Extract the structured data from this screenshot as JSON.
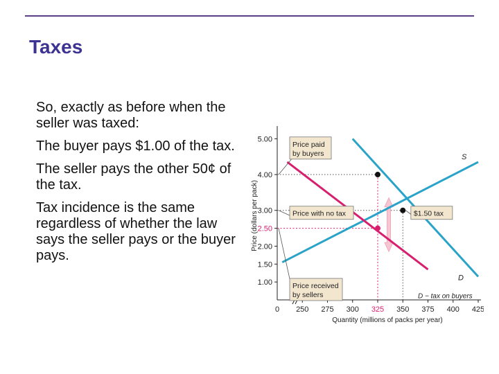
{
  "slide": {
    "title": "Taxes",
    "bullets": [
      "So, exactly as before when the seller was taxed:",
      "The buyer pays $1.00 of the tax.",
      "The seller pays the other 50¢ of the tax.",
      "Tax incidence is the same regardless of whether the law says the seller pays or the buyer pays."
    ]
  },
  "colors": {
    "accent_rule": "#5b3f86",
    "title": "#3d3393",
    "supply": "#2aa3c9",
    "demand": "#d81f6f",
    "demand_minus_tax": "#d81f6f",
    "callout_fill": "#f3e6cf",
    "tax_arrow": "#f6c6d3"
  },
  "chart_data": {
    "type": "line",
    "xlabel": "Quantity (millions of packs per year)",
    "ylabel": "Price (dollars per pack)",
    "x_ticks": [
      "0",
      "250",
      "275",
      "300",
      "325",
      "350",
      "375",
      "400",
      "425"
    ],
    "y_ticks": [
      "1.00",
      "1.50",
      "2.00",
      "2.50",
      "3.00",
      "4.00",
      "5.00"
    ],
    "xlim": [
      225,
      425
    ],
    "ylim": [
      0.5,
      5.2
    ],
    "highlight_x_tick": "325",
    "highlight_y_tick": "2.50",
    "series": [
      {
        "name": "S",
        "points": [
          [
            230,
            1.55
          ],
          [
            425,
            4.35
          ]
        ]
      },
      {
        "name": "D",
        "points": [
          [
            300,
            5.0
          ],
          [
            425,
            1.15
          ]
        ]
      },
      {
        "name": "D − tax on buyers",
        "points": [
          [
            235,
            4.35
          ],
          [
            375,
            1.35
          ]
        ]
      }
    ],
    "points": [
      {
        "label": "buyers price",
        "x": 325,
        "y": 4.0
      },
      {
        "label": "no tax equilibrium",
        "x": 350,
        "y": 3.0
      },
      {
        "label": "sellers price",
        "x": 325,
        "y": 2.5
      }
    ],
    "annotations": {
      "price_paid": "Price paid by buyers",
      "price_no_tax": "Price with no tax",
      "price_received": "Price received by sellers",
      "tax": "$1.50 tax"
    },
    "grid": false
  }
}
